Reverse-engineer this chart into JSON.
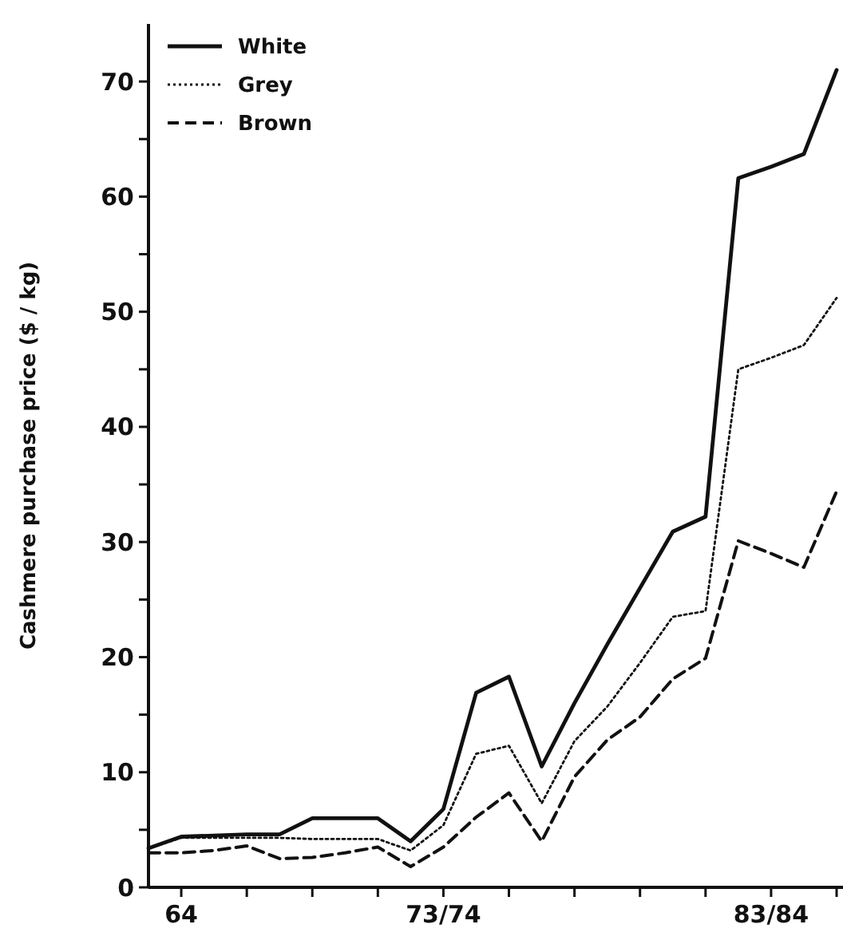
{
  "chart_data": {
    "type": "line",
    "ylabel": "Cashmere purchase price ($ / kg)",
    "categories": [
      null,
      "64",
      null,
      null,
      null,
      null,
      null,
      null,
      null,
      "73/74",
      null,
      null,
      null,
      null,
      null,
      null,
      null,
      null,
      null,
      "83/84",
      null,
      null
    ],
    "series": [
      {
        "name": "White",
        "color": "#111111",
        "line_style": "solid",
        "values": [
          3.4,
          4.4,
          4.5,
          4.6,
          4.6,
          6.0,
          6.0,
          6.0,
          4.0,
          6.8,
          16.9,
          18.3,
          10.5,
          16.0,
          21.1,
          26.0,
          30.9,
          32.2,
          61.6,
          62.6,
          63.7,
          71.0
        ]
      },
      {
        "name": "Grey",
        "color": "#111111",
        "line_style": "dotted",
        "values": [
          3.4,
          4.3,
          4.3,
          4.3,
          4.3,
          4.2,
          4.2,
          4.2,
          3.2,
          5.4,
          11.6,
          12.3,
          7.3,
          12.7,
          15.7,
          19.5,
          23.5,
          24.0,
          45.0,
          46.0,
          47.1,
          51.2
        ]
      },
      {
        "name": "Brown",
        "color": "#111111",
        "line_style": "dashed",
        "values": [
          3.0,
          3.0,
          3.2,
          3.6,
          2.5,
          2.6,
          3.0,
          3.5,
          1.8,
          3.5,
          6.1,
          8.2,
          4.0,
          9.6,
          12.8,
          14.8,
          18.1,
          19.9,
          30.1,
          29.0,
          27.8,
          34.4
        ]
      }
    ],
    "ylim": [
      0,
      75
    ],
    "yticks": [
      0,
      {
        "value": 5,
        "label": null
      },
      10,
      {
        "value": 15,
        "label": null
      },
      20,
      {
        "value": 25,
        "label": null
      },
      30,
      {
        "value": 35,
        "label": null
      },
      40,
      {
        "value": 45,
        "label": null
      },
      50,
      {
        "value": 55,
        "label": null
      },
      60,
      {
        "value": 65,
        "label": null
      },
      70
    ],
    "grid": false,
    "legend": "top left",
    "marker": "none"
  }
}
